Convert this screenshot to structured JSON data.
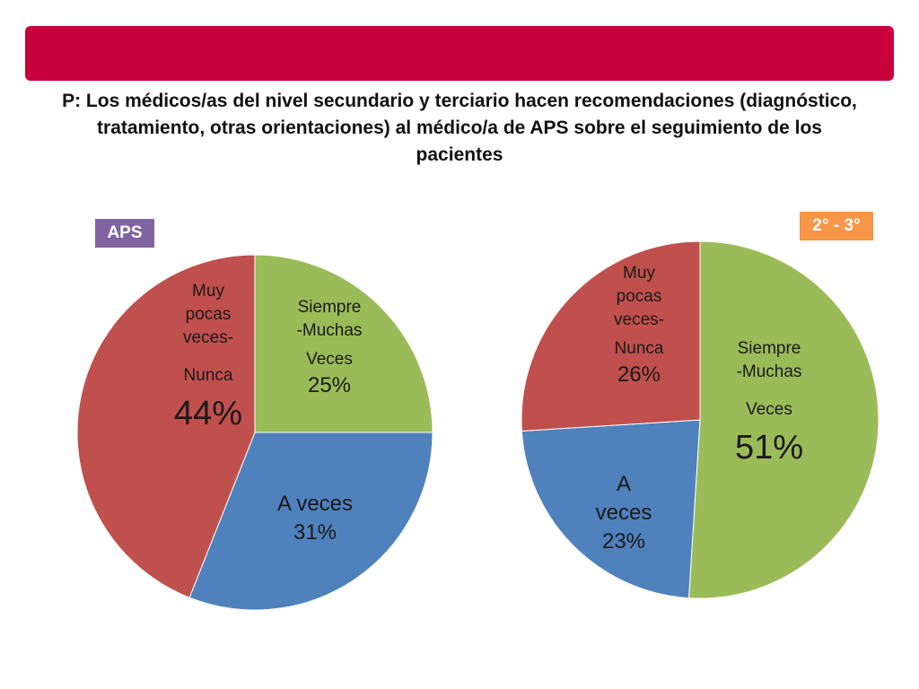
{
  "title": {
    "prefix": "P:",
    "text": " Los médicos/as del nivel secundario y terciario hacen recomendaciones (diagnóstico, tratamiento, otras orientaciones) al médico/a de APS sobre el seguimiento de los pacientes"
  },
  "colors": {
    "banner": "#c8003c",
    "green": "#9bbb59",
    "blue": "#4f81bd",
    "red": "#c0504d",
    "purple": "#8064a2",
    "orange": "#f79646"
  },
  "chart_data": [
    {
      "type": "pie",
      "title": "APS",
      "categories": [
        "Siempre -Muchas Veces",
        "A veces",
        "Muy pocas veces- Nunca"
      ],
      "values": [
        25,
        31,
        44
      ],
      "labels": [
        "25%",
        "31%",
        "44%"
      ],
      "colors": [
        "#9bbb59",
        "#4f81bd",
        "#c0504d"
      ],
      "start_angle_deg": 0,
      "direction": "clockwise"
    },
    {
      "type": "pie",
      "title": "2° - 3°",
      "categories": [
        "Siempre -Muchas Veces",
        "A veces",
        "Muy pocas veces- Nunca"
      ],
      "values": [
        51,
        23,
        26
      ],
      "labels": [
        "51%",
        "23%",
        "26%"
      ],
      "colors": [
        "#9bbb59",
        "#4f81bd",
        "#c0504d"
      ],
      "start_angle_deg": 0,
      "direction": "clockwise"
    }
  ],
  "left_labels": {
    "green": {
      "l1": "Siempre",
      "l2": "-Muchas",
      "l3": "Veces",
      "pct": "25%"
    },
    "blue": {
      "l1": "A veces",
      "pct": "31%"
    },
    "red": {
      "l1": "Muy",
      "l2": "pocas",
      "l3": "veces-",
      "l4": "Nunca",
      "pct": "44%"
    }
  },
  "right_labels": {
    "green": {
      "l1": "Siempre",
      "l2": "-Muchas",
      "l3": "Veces",
      "pct": "51%"
    },
    "blue": {
      "l1": "A",
      "l2": "veces",
      "pct": "23%"
    },
    "red": {
      "l1": "Muy",
      "l2": "pocas",
      "l3": "veces-",
      "l4": "Nunca",
      "pct": "26%"
    }
  }
}
